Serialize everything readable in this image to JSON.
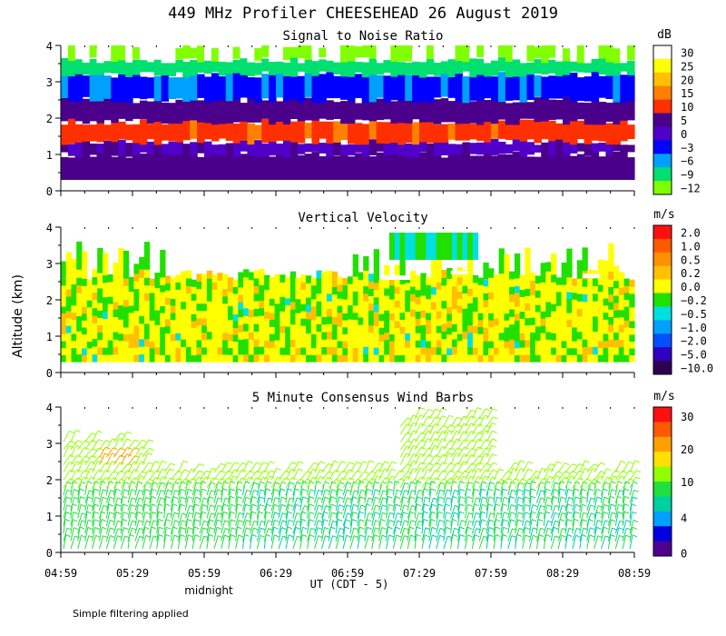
{
  "title": "449 MHz Profiler CHEESEHEAD 26 August 2019",
  "y_axis_label": "Altitude (km)",
  "x_axis_label": "UT  (CDT - 5)",
  "midnight_label": "midnight",
  "footer_note": "Simple filtering applied",
  "time_ticks": [
    "04:59",
    "05:29",
    "05:59",
    "06:29",
    "06:59",
    "07:29",
    "07:59",
    "08:29",
    "08:59"
  ],
  "chart_data": [
    {
      "type": "heatmap",
      "title": "Signal to Noise Ratio",
      "unit": "dB",
      "xlim": [
        "04:59",
        "08:59"
      ],
      "ylim": [
        0,
        4
      ],
      "yticks": [
        0,
        1,
        2,
        3,
        4
      ],
      "colorbar_labels": [
        "30",
        "25",
        "20",
        "15",
        "10",
        "5",
        "0",
        "−3",
        "−6",
        "−9",
        "−12"
      ],
      "colorbar_colors": [
        "#ffffff",
        "#ffff00",
        "#ffc000",
        "#ff8000",
        "#ff3000",
        "#4a008a",
        "#5000c8",
        "#0000ff",
        "#00a0ff",
        "#00e070",
        "#80ff00"
      ],
      "layers": [
        {
          "from_km": 0.3,
          "to_km": 1.0,
          "value": "0 to 5 dB (purple)"
        },
        {
          "from_km": 1.0,
          "to_km": 1.35,
          "value": "0 dB (purple/blue)"
        },
        {
          "from_km": 1.35,
          "to_km": 1.9,
          "value": "10 to 15 dB (red/orange)"
        },
        {
          "from_km": 1.9,
          "to_km": 2.5,
          "value": "0 to 5 dB (purple)"
        },
        {
          "from_km": 2.5,
          "to_km": 3.2,
          "value": "−3 to −6 dB (blue)"
        },
        {
          "from_km": 3.2,
          "to_km": 3.6,
          "value": "−9 dB (green)"
        },
        {
          "from_km": 3.6,
          "to_km": 4.0,
          "value": "−12 dB / no data (white)"
        }
      ]
    },
    {
      "type": "heatmap",
      "title": "Vertical Velocity",
      "unit": "m/s",
      "xlim": [
        "04:59",
        "08:59"
      ],
      "ylim": [
        0,
        4
      ],
      "yticks": [
        0,
        1,
        2,
        3,
        4
      ],
      "colorbar_labels": [
        "2.0",
        "1.0",
        "0.5",
        "0.2",
        "0.0",
        "−0.2",
        "−0.5",
        "−1.0",
        "−2.0",
        "−5.0",
        "−10.0"
      ],
      "colorbar_colors": [
        "#ff1010",
        "#ff5a00",
        "#ff9000",
        "#ffc000",
        "#ffff00",
        "#20e000",
        "#00e0e0",
        "#00a0ff",
        "#0050ff",
        "#3000c0",
        "#300050"
      ],
      "layers": [
        {
          "from_km": 0.3,
          "to_km": 2.8,
          "value": "0.0 to 0.2 m/s with −0.2 m/s streaks"
        },
        {
          "from_km": 2.8,
          "to_km": 3.9,
          "value": "sparse, 0.0 to −0.5 m/s"
        }
      ]
    },
    {
      "type": "wind_barbs",
      "title": "5 Minute Consensus Wind Barbs",
      "unit": "m/s",
      "xlim": [
        "04:59",
        "08:59"
      ],
      "ylim": [
        0,
        4
      ],
      "yticks": [
        0,
        1,
        2,
        3,
        4
      ],
      "colorbar_labels": [
        "30",
        "20",
        "10",
        "4",
        "0"
      ],
      "colorbar_colors": [
        "#ff1010",
        "#ff5a00",
        "#ffa000",
        "#ffe000",
        "#90ff00",
        "#20e040",
        "#00d0a0",
        "#00a0ff",
        "#0000e0",
        "#500090"
      ],
      "speed_summary": [
        {
          "from_km": 0.1,
          "to_km": 1.5,
          "speed_ms": 8
        },
        {
          "from_km": 1.5,
          "to_km": 2.3,
          "speed_ms": 10
        },
        {
          "from_km": 2.3,
          "to_km": 3.0,
          "speed_ms": 15
        },
        {
          "from_km": 3.0,
          "to_km": 4.0,
          "speed_ms": 12
        }
      ]
    }
  ]
}
